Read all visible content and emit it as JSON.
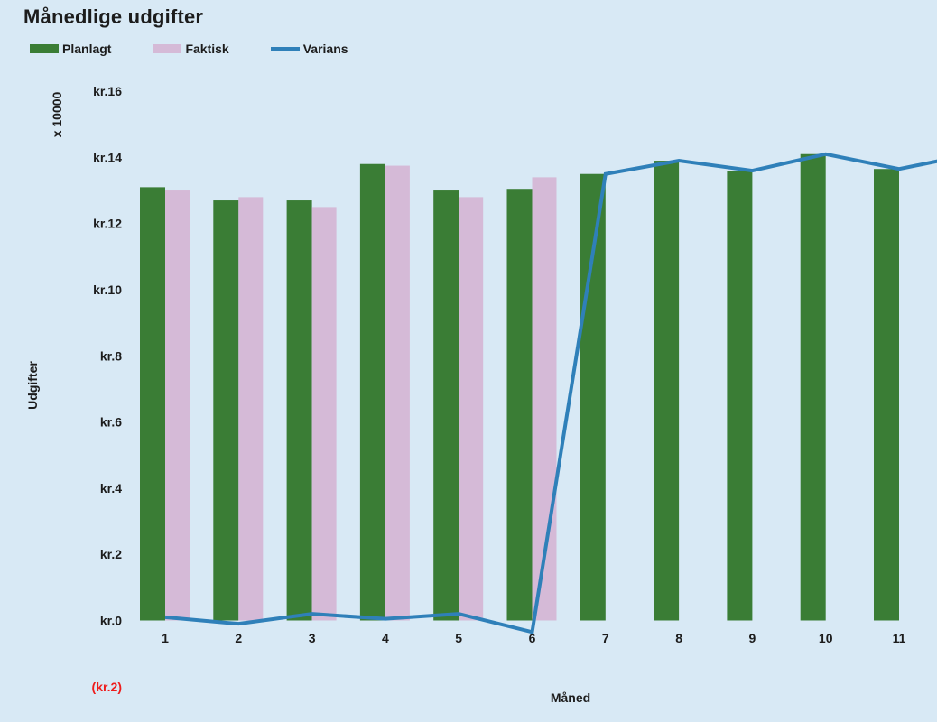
{
  "title": "Månedlige udgifter",
  "legend": {
    "planlagt": "Planlagt",
    "faktisk": "Faktisk",
    "varians": "Varians"
  },
  "colors": {
    "background": "#d8e9f5",
    "planlagt": "#3a7d35",
    "faktisk": "#d5bad7",
    "varians": "#2f80b9",
    "text": "#1c1c1c",
    "negative_tick": "#ee1c1c"
  },
  "axes": {
    "y_title": "Udgifter",
    "y_multiplier": "x 10000",
    "x_title": "Måned",
    "y_ticks": [
      {
        "value": 16,
        "label": "kr.16",
        "negative": false
      },
      {
        "value": 14,
        "label": "kr.14",
        "negative": false
      },
      {
        "value": 12,
        "label": "kr.12",
        "negative": false
      },
      {
        "value": 10,
        "label": "kr.10",
        "negative": false
      },
      {
        "value": 8,
        "label": "kr.8",
        "negative": false
      },
      {
        "value": 6,
        "label": "kr.6",
        "negative": false
      },
      {
        "value": 4,
        "label": "kr.4",
        "negative": false
      },
      {
        "value": 2,
        "label": "kr.2",
        "negative": false
      },
      {
        "value": 0,
        "label": "kr.0",
        "negative": false
      },
      {
        "value": -2,
        "label": "(kr.2)",
        "negative": true
      }
    ],
    "x_ticks": [
      "1",
      "2",
      "3",
      "4",
      "5",
      "6",
      "7",
      "8",
      "9",
      "10",
      "11"
    ]
  },
  "chart_data": {
    "type": "bar+line",
    "title": "Månedlige udgifter",
    "xlabel": "Måned",
    "ylabel": "Udgifter",
    "y_unit_multiplier": 10000,
    "ylim": [
      -2,
      16
    ],
    "grid": false,
    "legend_position": "top-left",
    "categories": [
      1,
      2,
      3,
      4,
      5,
      6,
      7,
      8,
      9,
      10,
      11
    ],
    "series": [
      {
        "name": "Planlagt",
        "type": "bar",
        "color": "#3a7d35",
        "values": [
          13.1,
          12.7,
          12.7,
          13.8,
          13.0,
          13.05,
          13.5,
          13.9,
          13.6,
          14.1,
          13.65
        ]
      },
      {
        "name": "Faktisk",
        "type": "bar",
        "color": "#d5bad7",
        "values": [
          13.0,
          12.8,
          12.5,
          13.75,
          12.8,
          13.4,
          null,
          null,
          null,
          null,
          null
        ]
      },
      {
        "name": "Varians",
        "type": "line",
        "color": "#2f80b9",
        "values": [
          0.1,
          -0.1,
          0.2,
          0.05,
          0.2,
          -0.35,
          13.5,
          13.9,
          13.6,
          14.1,
          13.65
        ],
        "right_edge_value": 13.95
      }
    ]
  }
}
